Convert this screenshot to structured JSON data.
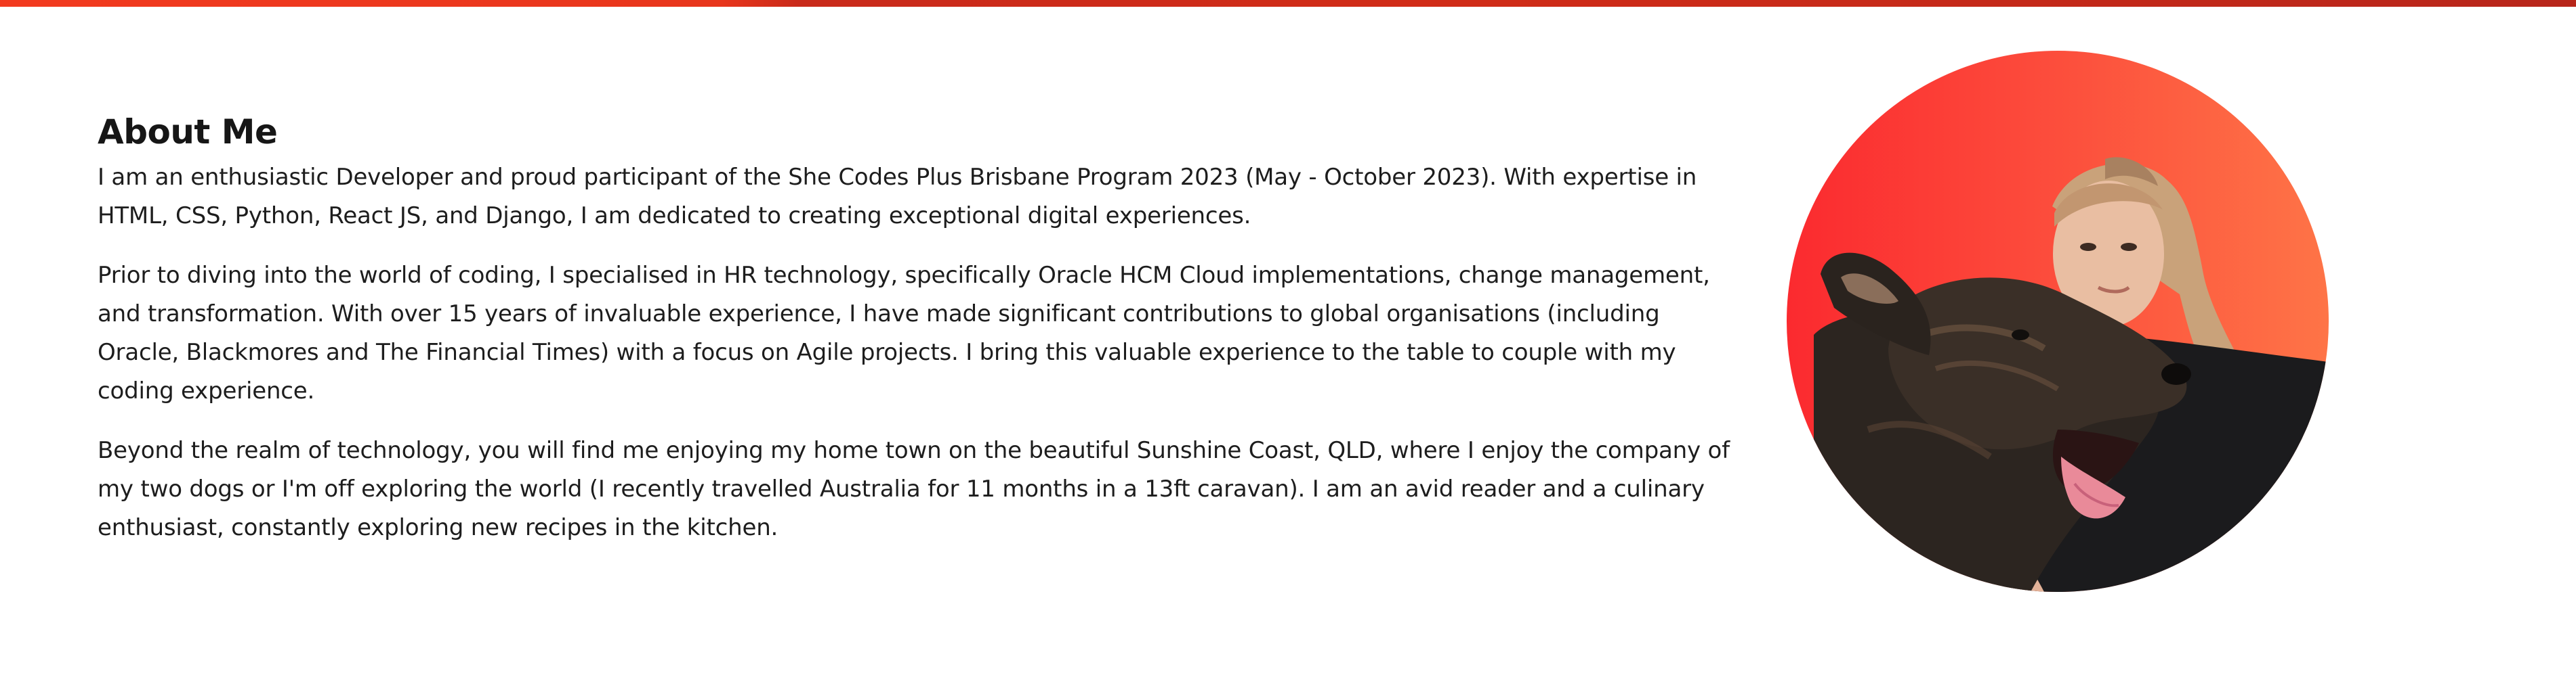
{
  "about": {
    "heading": "About Me",
    "paragraphs": [
      "I am an enthusiastic Developer and proud participant of the She Codes Plus Brisbane Program 2023 (May - October 2023). With expertise in HTML, CSS, Python, React JS, and Django, I am dedicated to creating exceptional digital experiences.",
      "Prior to diving into the world of coding, I specialised in HR technology, specifically Oracle HCM Cloud implementations, change management, and transformation. With over 15 years of invaluable experience, I have made significant contributions to global organisations (including Oracle, Blackmores and The Financial Times) with a focus on Agile projects. I bring this valuable experience to the table to couple with my coding experience.",
      "Beyond the realm of technology, you will find me enjoying my home town on the beautiful Sunshine Coast, QLD, where I enjoy the company of my two dogs or I'm off exploring the world (I recently travelled Australia for 11 months in a 13ft caravan). I am an avid reader and a culinary enthusiast, constantly exploring new recipes in the kitchen."
    ]
  },
  "colors": {
    "accent_bar": "#d12c18",
    "photo_gradient_start": "#fb2a2f",
    "photo_gradient_end": "#fe7447",
    "text": "#1d1d1d"
  },
  "icons": {
    "profile_photo": "portrait-with-dog-photo"
  }
}
